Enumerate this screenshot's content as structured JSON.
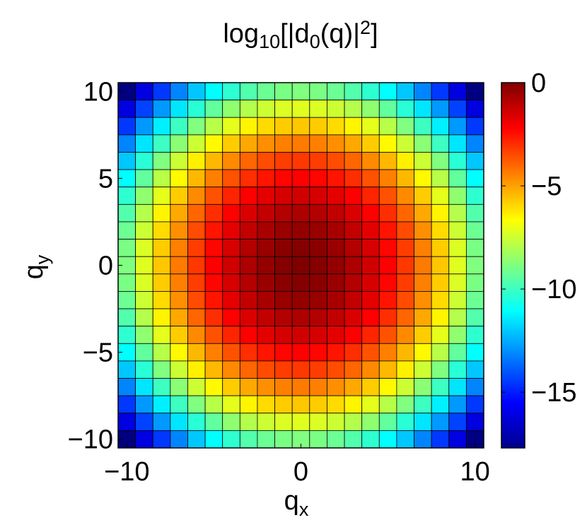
{
  "chart_data": {
    "type": "heatmap",
    "title": {
      "prefix": "log",
      "base": "10",
      "middle": "[|d",
      "index": "0",
      "after": "(q)|",
      "power": "2",
      "end": "]"
    },
    "xlabel": {
      "main": "q",
      "sub": "x"
    },
    "ylabel": {
      "main": "q",
      "sub": "y"
    },
    "x_range": [
      -10,
      10
    ],
    "y_range": [
      -10,
      10
    ],
    "grid_points_per_axis": 21,
    "xticks": [
      {
        "value": -10,
        "label": "−10"
      },
      {
        "value": 0,
        "label": "0"
      },
      {
        "value": 10,
        "label": "10"
      }
    ],
    "yticks": [
      {
        "value": 10,
        "label": "10"
      },
      {
        "value": 5,
        "label": "5"
      },
      {
        "value": 0,
        "label": "0"
      },
      {
        "value": -5,
        "label": "−5"
      },
      {
        "value": -10,
        "label": "−10"
      }
    ],
    "value_model": "z = -0.0885 * (qx^2 + qy^2)",
    "coefficient": -0.0885,
    "colorbar": {
      "colormap": "jet",
      "range": [
        -17.7,
        0
      ],
      "ticks": [
        {
          "value": 0,
          "label": "0"
        },
        {
          "value": -5,
          "label": "−5"
        },
        {
          "value": -10,
          "label": "−10"
        },
        {
          "value": -15,
          "label": "−15"
        }
      ]
    }
  }
}
